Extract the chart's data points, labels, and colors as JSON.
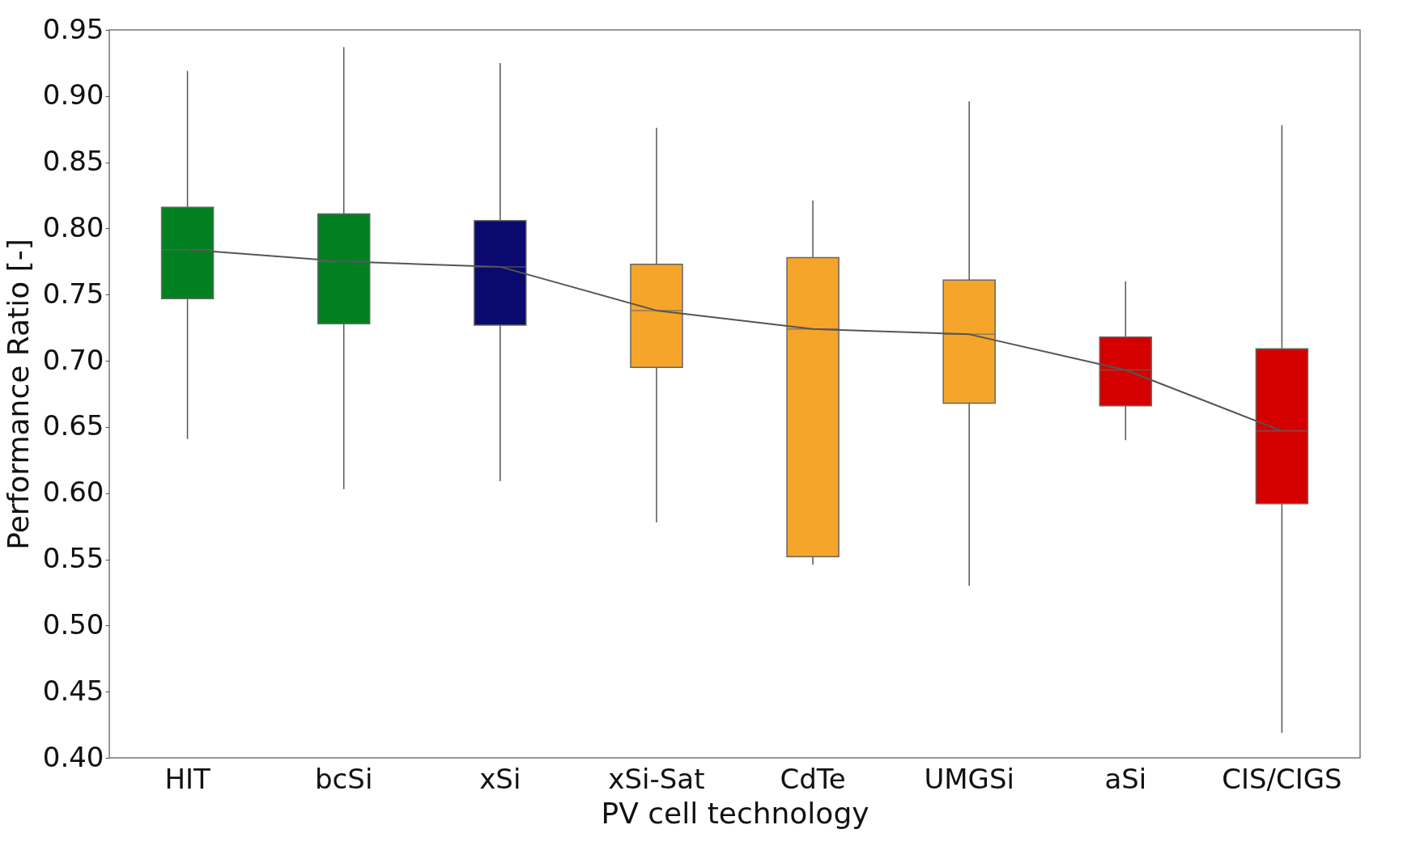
{
  "chart_data": {
    "type": "box",
    "xlabel": "PV cell technology",
    "ylabel": "Performance Ratio [-]",
    "categories": [
      "HIT",
      "bcSi",
      "xSi",
      "xSi-Sat",
      "CdTe",
      "UMGSi",
      "aSi",
      "CIS/CIGS"
    ],
    "colors": [
      "#008020",
      "#008020",
      "#0a0a6e",
      "#f5a52a",
      "#f5a52a",
      "#f5a52a",
      "#d40000",
      "#d40000"
    ],
    "boxes": [
      {
        "low": 0.641,
        "q1": 0.747,
        "median": 0.784,
        "q3": 0.816,
        "high": 0.919
      },
      {
        "low": 0.603,
        "q1": 0.728,
        "median": 0.775,
        "q3": 0.811,
        "high": 0.937
      },
      {
        "low": 0.609,
        "q1": 0.727,
        "median": 0.771,
        "q3": 0.806,
        "high": 0.925
      },
      {
        "low": 0.578,
        "q1": 0.695,
        "median": 0.738,
        "q3": 0.773,
        "high": 0.876
      },
      {
        "low": 0.546,
        "q1": 0.552,
        "median": 0.724,
        "q3": 0.778,
        "high": 0.821
      },
      {
        "low": 0.53,
        "q1": 0.668,
        "median": 0.72,
        "q3": 0.761,
        "high": 0.896
      },
      {
        "low": 0.64,
        "q1": 0.666,
        "median": 0.693,
        "q3": 0.718,
        "high": 0.76
      },
      {
        "low": 0.419,
        "q1": 0.592,
        "median": 0.647,
        "q3": 0.709,
        "high": 0.878
      }
    ],
    "series": [
      {
        "type": "line",
        "color": "#555555",
        "values": [
          0.784,
          0.775,
          0.771,
          0.738,
          0.724,
          0.72,
          0.693,
          0.647
        ]
      }
    ],
    "ylim": [
      0.4,
      0.95
    ],
    "yticks": [
      {
        "value": 0.4,
        "label": "0.40"
      },
      {
        "value": 0.45,
        "label": "0.45"
      },
      {
        "value": 0.5,
        "label": "0.50"
      },
      {
        "value": 0.55,
        "label": "0.55"
      },
      {
        "value": 0.6,
        "label": "0.60"
      },
      {
        "value": 0.65,
        "label": "0.65"
      },
      {
        "value": 0.7,
        "label": "0.70"
      },
      {
        "value": 0.75,
        "label": "0.75"
      },
      {
        "value": 0.8,
        "label": "0.80"
      },
      {
        "value": 0.85,
        "label": "0.85"
      },
      {
        "value": 0.9,
        "label": "0.90"
      },
      {
        "value": 0.95,
        "label": "0.95"
      }
    ],
    "grid": false,
    "legend": false,
    "marker": "none"
  }
}
